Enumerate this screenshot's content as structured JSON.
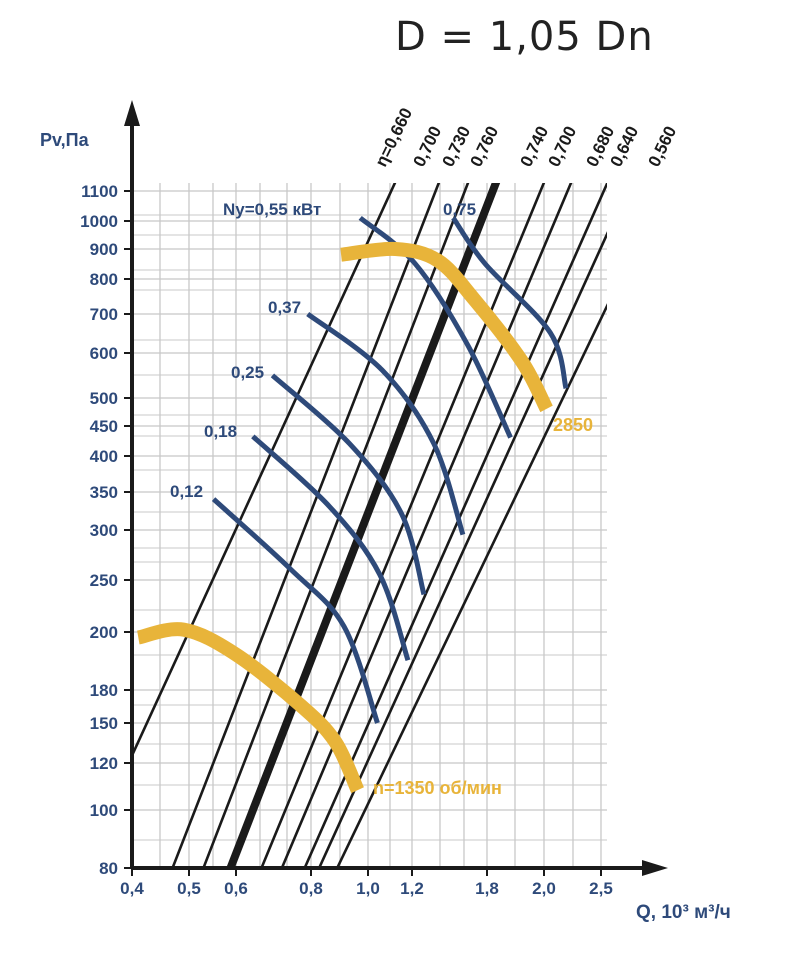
{
  "title": "D = 1,05 Dn",
  "chart_data": {
    "type": "line",
    "xlabel": "Q, 10³ м³/ч",
    "ylabel": "Pv,Па",
    "x_ticks": [
      "0,4",
      "0,5",
      "0,6",
      "0,8",
      "1,0",
      "1,2",
      "1,8",
      "2,0",
      "2,5"
    ],
    "y_ticks": [
      "80",
      "100",
      "120",
      "150",
      "180",
      "200",
      "250",
      "300",
      "350",
      "400",
      "450",
      "500",
      "600",
      "700",
      "800",
      "900",
      "1000",
      "1100"
    ],
    "efficiency_lines": {
      "labels": [
        "η=0,660",
        "0,700",
        "0,730",
        "0,760",
        "0,740",
        "0,700",
        "0,680",
        "0,640",
        "0,560"
      ],
      "bold_index": 3
    },
    "power_curves": {
      "label_prefix": "Ny=",
      "unit": "кВт",
      "series": [
        {
          "name": "0,12",
          "points": [
            {
              "x": 0.55,
              "y": 340
            },
            {
              "x": 0.74,
              "y": 260
            },
            {
              "x": 0.91,
              "y": 205
            },
            {
              "x": 1.04,
              "y": 150
            }
          ]
        },
        {
          "name": "0,18",
          "points": [
            {
              "x": 0.64,
              "y": 432
            },
            {
              "x": 0.86,
              "y": 330
            },
            {
              "x": 1.05,
              "y": 255
            },
            {
              "x": 1.18,
              "y": 190
            }
          ]
        },
        {
          "name": "0,25",
          "points": [
            {
              "x": 0.69,
              "y": 548
            },
            {
              "x": 0.93,
              "y": 420
            },
            {
              "x": 1.15,
              "y": 320
            },
            {
              "x": 1.28,
              "y": 235
            }
          ]
        },
        {
          "name": "0,37",
          "points": [
            {
              "x": 0.79,
              "y": 700
            },
            {
              "x": 1.06,
              "y": 560
            },
            {
              "x": 1.35,
              "y": 420
            },
            {
              "x": 1.58,
              "y": 295
            }
          ]
        },
        {
          "name": "0,55",
          "points": [
            {
              "x": 0.97,
              "y": 1010
            },
            {
              "x": 1.22,
              "y": 850
            },
            {
              "x": 1.62,
              "y": 620
            },
            {
              "x": 1.88,
              "y": 430
            }
          ]
        },
        {
          "name": "0,75",
          "points": [
            {
              "x": 1.5,
              "y": 1010
            },
            {
              "x": 1.78,
              "y": 850
            },
            {
              "x": 2.05,
              "y": 650
            },
            {
              "x": 2.18,
              "y": 520
            }
          ]
        }
      ]
    },
    "speed_curves": [
      {
        "label": "n=1350 об/мин",
        "points": [
          {
            "x": 0.41,
            "y": 198
          },
          {
            "x": 0.49,
            "y": 202
          },
          {
            "x": 0.6,
            "y": 192
          },
          {
            "x": 0.77,
            "y": 165
          },
          {
            "x": 0.88,
            "y": 135
          },
          {
            "x": 0.96,
            "y": 108
          }
        ]
      },
      {
        "label": "2850",
        "points": [
          {
            "x": 0.9,
            "y": 880
          },
          {
            "x": 1.12,
            "y": 900
          },
          {
            "x": 1.38,
            "y": 860
          },
          {
            "x": 1.68,
            "y": 740
          },
          {
            "x": 1.92,
            "y": 580
          },
          {
            "x": 2.02,
            "y": 480
          }
        ]
      }
    ],
    "colors": {
      "axis": "#1a1a1a",
      "grid": "#c8c8c8",
      "efficiency": "#1a1a1a",
      "power": "#2e4a7a",
      "speed": "#e8b43a",
      "labels": "#2e4a7a",
      "speed_labels": "#e8b43a"
    },
    "grid": true,
    "scale": "log-log"
  }
}
